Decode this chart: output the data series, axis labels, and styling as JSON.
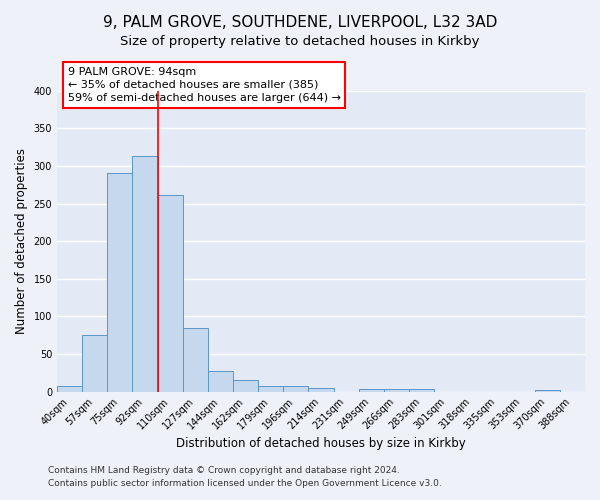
{
  "title1": "9, PALM GROVE, SOUTHDENE, LIVERPOOL, L32 3AD",
  "title2": "Size of property relative to detached houses in Kirkby",
  "xlabel": "Distribution of detached houses by size in Kirkby",
  "ylabel": "Number of detached properties",
  "bin_labels": [
    "40sqm",
    "57sqm",
    "75sqm",
    "92sqm",
    "110sqm",
    "127sqm",
    "144sqm",
    "162sqm",
    "179sqm",
    "196sqm",
    "214sqm",
    "231sqm",
    "249sqm",
    "266sqm",
    "283sqm",
    "301sqm",
    "318sqm",
    "335sqm",
    "353sqm",
    "370sqm",
    "388sqm"
  ],
  "bar_heights": [
    8,
    75,
    291,
    313,
    262,
    84,
    27,
    15,
    7,
    7,
    5,
    0,
    4,
    4,
    3,
    0,
    0,
    0,
    0,
    2,
    0
  ],
  "bar_color": "#c5d8ed",
  "bar_edge_color": "#5a96c8",
  "property_bin_index": 3,
  "annotation_title": "9 PALM GROVE: 94sqm",
  "annotation_line1": "← 35% of detached houses are smaller (385)",
  "annotation_line2": "59% of semi-detached houses are larger (644) →",
  "footer1": "Contains HM Land Registry data © Crown copyright and database right 2024.",
  "footer2": "Contains public sector information licensed under the Open Government Licence v3.0.",
  "ylim": [
    0,
    400
  ],
  "yticks": [
    0,
    50,
    100,
    150,
    200,
    250,
    300,
    350,
    400
  ],
  "bg_color": "#eef2f8",
  "plot_bg_color": "#e4eaf5",
  "grid_color": "#ffffff",
  "title_fontsize": 11,
  "subtitle_fontsize": 9.5,
  "axis_label_fontsize": 8.5,
  "tick_fontsize": 7,
  "footer_fontsize": 6.5,
  "annotation_fontsize": 8
}
